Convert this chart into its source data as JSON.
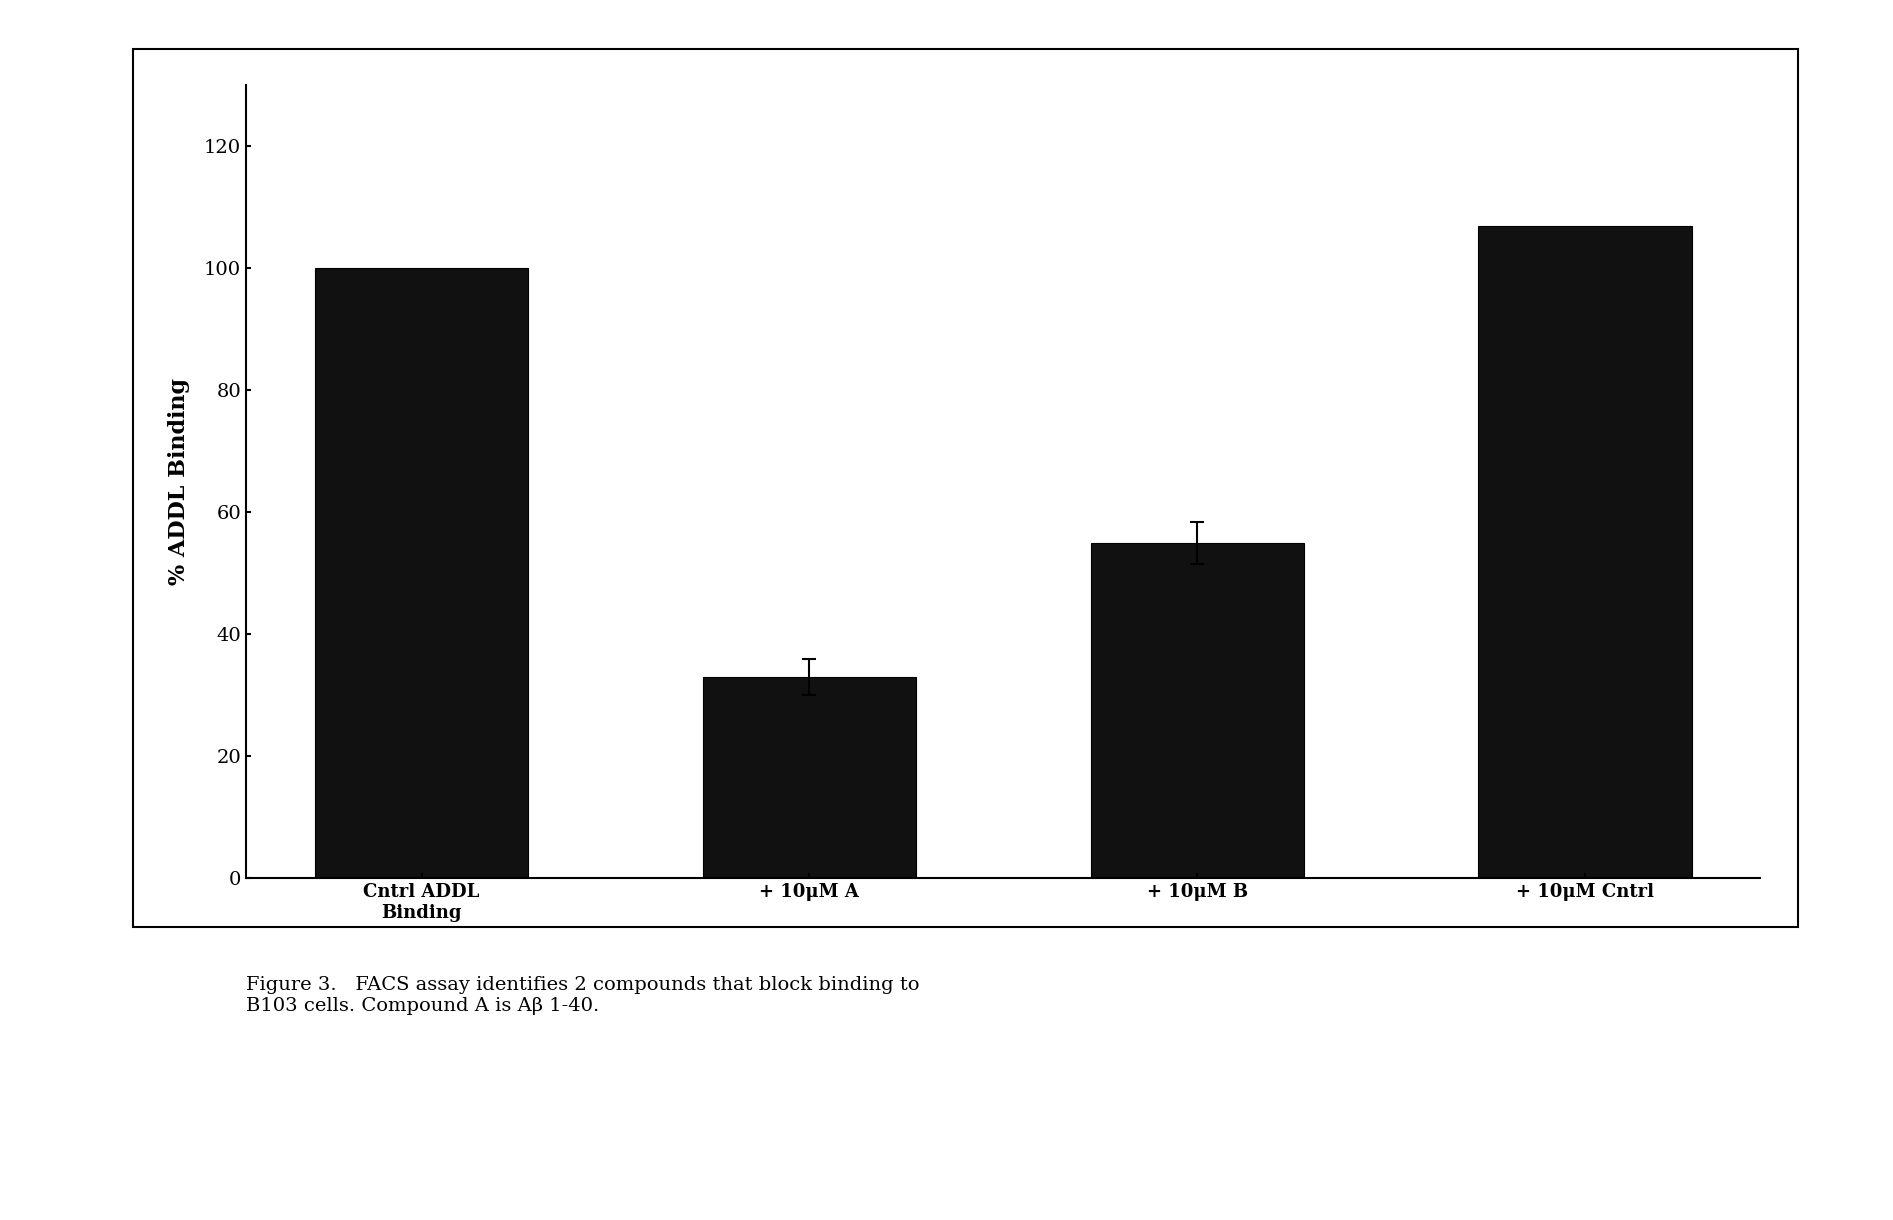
{
  "categories": [
    "Cntrl ADDL\nBinding",
    "+ 10μM A",
    "+ 10μM B",
    "+ 10μM Cntrl"
  ],
  "values": [
    100,
    33,
    55,
    107
  ],
  "errors": [
    0,
    3,
    3.5,
    0
  ],
  "bar_color": "#111111",
  "ylabel": "% ADDL Binding",
  "ylim": [
    0,
    130
  ],
  "yticks": [
    0,
    20,
    40,
    60,
    80,
    100,
    120
  ],
  "bar_width": 0.55,
  "figure_width": 18.93,
  "figure_height": 12.2,
  "axis_fontsize": 16,
  "tick_fontsize": 14,
  "caption": "Figure 3.   FACS assay identifies 2 compounds that block binding to\nB103 cells. Compound A is Aβ 1-40.",
  "caption_fontsize": 14
}
